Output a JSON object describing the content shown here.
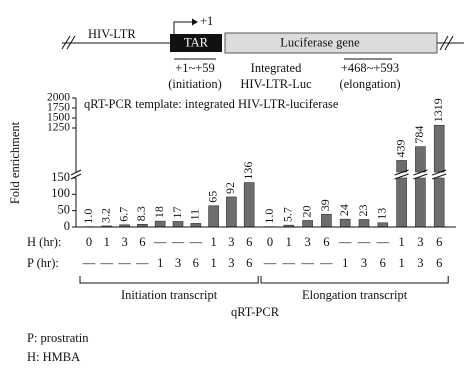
{
  "diagram": {
    "left_label": "HIV-LTR",
    "tss": "+1",
    "tar": "TAR",
    "gene": "Luciferase gene",
    "initiation_region": "+1~+59",
    "initiation_note": "(initiation)",
    "construct_line1": "Integrated",
    "construct_line2": "HIV-LTR-Luc",
    "elongation_region": "+468~+593",
    "elongation_note": "(elongation)"
  },
  "chart_data": {
    "type": "bar",
    "annotation": "qRT-PCR template: integrated HIV-LTR-luciferase",
    "ylabel": "Fold enrichment",
    "xlabel": "qRT-PCR",
    "values": [
      1.0,
      3.2,
      6.7,
      8.3,
      18,
      17,
      11,
      65,
      92,
      136,
      1.0,
      5.7,
      20,
      39,
      24,
      23,
      13,
      439,
      784,
      1319
    ],
    "value_labels": [
      "1.0",
      "3.2",
      "6.7",
      "8.3",
      "18",
      "17",
      "11",
      "65",
      "92",
      "136",
      "1.0",
      "5.7",
      "20",
      "39",
      "24",
      "23",
      "13",
      "439",
      "784",
      "1319"
    ],
    "color": "#6d6d6d",
    "ylim": [
      0,
      150
    ],
    "yticks": [
      0,
      50,
      100,
      150
    ],
    "ylim_upper": [
      150,
      2000
    ],
    "yticks_upper": [
      1250,
      1500,
      1750,
      2000
    ],
    "rows": [
      {
        "label": "H (hr):",
        "values": [
          "0",
          "1",
          "3",
          "6",
          "—",
          "—",
          "—",
          "1",
          "3",
          "6",
          "0",
          "1",
          "3",
          "6",
          "—",
          "—",
          "—",
          "1",
          "3",
          "6"
        ]
      },
      {
        "label": "P (hr):",
        "values": [
          "—",
          "—",
          "—",
          "—",
          "1",
          "3",
          "6",
          "1",
          "3",
          "6",
          "—",
          "—",
          "—",
          "—",
          "1",
          "3",
          "6",
          "1",
          "3",
          "6"
        ]
      }
    ],
    "groups": [
      "Initiation transcript",
      "Elongation transcript"
    ]
  },
  "notes": [
    "P: prostratin",
    "H: HMBA"
  ]
}
